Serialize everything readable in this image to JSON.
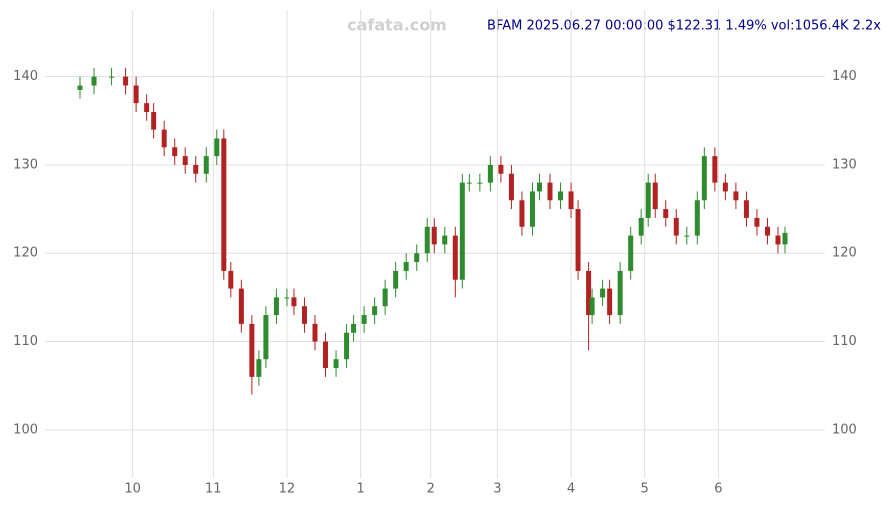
{
  "chart_data": {
    "type": "candlestick",
    "title": "BFAM 2025.06.27 00:00:00 $122.31 1.49% vol:1056.4K 2.2x",
    "watermark": "cafata.com",
    "x": [
      0,
      4,
      9,
      13,
      16,
      19,
      21,
      24,
      27,
      30,
      33,
      36,
      39,
      41,
      43,
      46,
      49,
      51,
      53,
      56,
      59,
      61,
      64,
      67,
      70,
      73,
      76,
      78,
      81,
      84,
      87,
      90,
      93,
      96,
      99,
      101,
      104,
      107,
      109,
      111,
      114,
      117,
      120,
      123,
      126,
      129,
      131,
      134,
      137,
      140,
      142,
      145,
      146,
      149,
      151,
      154,
      157,
      160,
      162,
      164,
      167,
      170,
      173,
      176,
      178,
      181,
      184,
      187,
      190,
      193,
      196,
      199,
      201
    ],
    "open": [
      138.5,
      139,
      140,
      140,
      139,
      137,
      136,
      134,
      132,
      131,
      130,
      129,
      131,
      133,
      118,
      116,
      112,
      106,
      108,
      113,
      115,
      115,
      114,
      112,
      110,
      107,
      108,
      111,
      112,
      113,
      114,
      116,
      118,
      119,
      120,
      123,
      121,
      122,
      117,
      128,
      128,
      128,
      130,
      129,
      126,
      123,
      127,
      128,
      126,
      127,
      125,
      118,
      113,
      115,
      116,
      113,
      118,
      122,
      124,
      128,
      125,
      124,
      122,
      122,
      126,
      131,
      128,
      127,
      126,
      124,
      123,
      122,
      121
    ],
    "high": [
      140,
      141,
      141,
      141,
      140,
      138,
      137,
      135,
      133,
      132,
      131,
      132,
      134,
      134,
      119,
      117,
      113,
      109,
      114,
      116,
      116,
      116,
      115,
      113,
      111,
      109,
      112,
      113,
      114,
      115,
      117,
      119,
      120,
      121,
      124,
      124,
      123,
      123,
      129,
      129,
      129,
      131,
      131,
      130,
      127,
      128,
      129,
      129,
      128,
      128,
      126,
      119,
      116,
      117,
      117,
      119,
      123,
      125,
      129,
      129,
      126,
      125,
      123,
      127,
      132,
      132,
      129,
      128,
      127,
      125,
      124,
      123,
      123
    ],
    "low": [
      137.5,
      138,
      139,
      138,
      136,
      135,
      133,
      131,
      130,
      129,
      128,
      128,
      130,
      117,
      115,
      111,
      104,
      105,
      107,
      112,
      114,
      113,
      111,
      109,
      106,
      106,
      107,
      110,
      111,
      112,
      113,
      115,
      117,
      118,
      119,
      120,
      120,
      115,
      116,
      127,
      127,
      127,
      128,
      125,
      122,
      122,
      126,
      125,
      125,
      124,
      117,
      109,
      112,
      114,
      112,
      112,
      117,
      121,
      123,
      124,
      123,
      121,
      121,
      121,
      125,
      127,
      126,
      125,
      123,
      122,
      121,
      120,
      120
    ],
    "close": [
      139,
      140,
      140,
      139,
      137,
      136,
      134,
      132,
      131,
      130,
      129,
      131,
      133,
      118,
      116,
      112,
      106,
      108,
      113,
      115,
      115,
      114,
      112,
      110,
      107,
      108,
      111,
      112,
      113,
      114,
      116,
      118,
      119,
      120,
      123,
      121,
      122,
      117,
      128,
      128,
      128,
      130,
      129,
      126,
      123,
      127,
      128,
      126,
      127,
      125,
      118,
      113,
      115,
      116,
      113,
      118,
      122,
      124,
      128,
      125,
      124,
      122,
      122,
      126,
      131,
      128,
      127,
      126,
      124,
      123,
      122,
      121,
      122.31
    ],
    "up_color": "#2e8b2e",
    "down_color": "#b22222",
    "xlim": [
      0,
      201
    ],
    "ylim": [
      95,
      148
    ],
    "xticks": [
      {
        "value": 15,
        "label": "10"
      },
      {
        "value": 38,
        "label": "11"
      },
      {
        "value": 59,
        "label": "12"
      },
      {
        "value": 80,
        "label": "1"
      },
      {
        "value": 100,
        "label": "2"
      },
      {
        "value": 119,
        "label": "3"
      },
      {
        "value": 140,
        "label": "4"
      },
      {
        "value": 161,
        "label": "5"
      },
      {
        "value": 182,
        "label": "6"
      }
    ],
    "yticks": [
      100,
      110,
      120,
      130,
      140
    ],
    "grid": true
  }
}
